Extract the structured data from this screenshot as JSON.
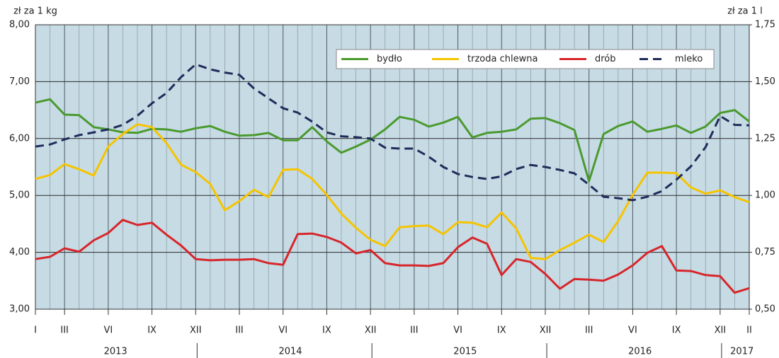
{
  "chart_data": {
    "type": "line",
    "y_label": "zł za 1 kg",
    "y2_label": "zł za 1 l",
    "categories": [
      "I",
      null,
      "III",
      null,
      null,
      "VI",
      null,
      null,
      "IX",
      null,
      null,
      "XII",
      null,
      null,
      "III",
      null,
      null,
      "VI",
      null,
      null,
      "IX",
      null,
      null,
      "XII",
      null,
      null,
      "III",
      null,
      null,
      "VI",
      null,
      null,
      "IX",
      null,
      null,
      "XII",
      null,
      null,
      "III",
      null,
      null,
      "VI",
      null,
      null,
      "IX",
      null,
      null,
      "XII",
      null,
      "II"
    ],
    "year_labels": [
      "2013",
      "2014",
      "2015",
      "2016",
      "2017"
    ],
    "ylim": [
      3,
      8
    ],
    "yticks": [
      {
        "value": 3,
        "label": "3,00"
      },
      {
        "value": 4,
        "label": "4,00"
      },
      {
        "value": 5,
        "label": "5,00"
      },
      {
        "value": 6,
        "label": "6,00"
      },
      {
        "value": 7,
        "label": "7,00"
      },
      {
        "value": 8,
        "label": "8,00"
      }
    ],
    "y2lim": [
      0.5,
      1.75
    ],
    "y2ticks": [
      {
        "value": 0.5,
        "label": "0,50"
      },
      {
        "value": 0.75,
        "label": "0,75"
      },
      {
        "value": 1,
        "label": "1,00"
      },
      {
        "value": 1.25,
        "label": "1,25"
      },
      {
        "value": 1.5,
        "label": "1,50"
      },
      {
        "value": 1.75,
        "label": "1,75"
      }
    ],
    "grid": true,
    "legend": "upper right",
    "series": [
      {
        "name": "bydło",
        "color": "#4a9a2e",
        "values": [
          6.63,
          6.69,
          6.42,
          6.41,
          6.2,
          6.16,
          6.11,
          6.1,
          6.17,
          6.16,
          6.12,
          6.18,
          6.22,
          6.12,
          6.05,
          6.06,
          6.1,
          5.97,
          5.97,
          6.2,
          5.95,
          5.75,
          5.86,
          5.98,
          6.16,
          6.38,
          6.33,
          6.21,
          6.28,
          6.38,
          6.02,
          6.1,
          6.12,
          6.16,
          6.35,
          6.36,
          6.27,
          6.15,
          5.25,
          6.08,
          6.22,
          6.3,
          6.12,
          6.17,
          6.23,
          6.1,
          6.21,
          6.45,
          6.5,
          6.3
        ]
      },
      {
        "name": "trzoda chlewna",
        "color": "#f5c400",
        "values": [
          5.29,
          5.36,
          5.55,
          5.46,
          5.35,
          5.86,
          6.08,
          6.25,
          6.2,
          5.92,
          5.54,
          5.41,
          5.2,
          4.74,
          4.9,
          5.1,
          4.97,
          5.45,
          5.46,
          5.29,
          5.01,
          4.68,
          4.43,
          4.22,
          4.11,
          4.44,
          4.46,
          4.47,
          4.32,
          4.53,
          4.52,
          4.44,
          4.7,
          4.42,
          3.9,
          3.88,
          4.04,
          4.17,
          4.31,
          4.18,
          4.55,
          5.01,
          5.4,
          5.4,
          5.39,
          5.14,
          5.03,
          5.09,
          4.97,
          4.88
        ]
      },
      {
        "name": "drób",
        "color": "#d7262a",
        "values": [
          3.88,
          3.92,
          4.07,
          4.01,
          4.21,
          4.34,
          4.57,
          4.48,
          4.52,
          4.31,
          4.12,
          3.88,
          3.86,
          3.87,
          3.87,
          3.88,
          3.81,
          3.78,
          4.32,
          4.33,
          4.27,
          4.17,
          3.98,
          4.04,
          3.81,
          3.77,
          3.77,
          3.76,
          3.81,
          4.09,
          4.26,
          4.15,
          3.6,
          3.88,
          3.83,
          3.62,
          3.36,
          3.53,
          3.52,
          3.5,
          3.61,
          3.77,
          3.99,
          4.11,
          3.68,
          3.67,
          3.6,
          3.58,
          3.29,
          3.37
        ]
      },
      {
        "name": "mleko",
        "color": "#1f2d5a",
        "dashed": true,
        "axis": "y2",
        "values": [
          1.215,
          1.224,
          1.246,
          1.265,
          1.277,
          1.29,
          1.31,
          1.35,
          1.405,
          1.45,
          1.52,
          1.576,
          1.554,
          1.54,
          1.53,
          1.47,
          1.427,
          1.383,
          1.364,
          1.324,
          1.277,
          1.26,
          1.256,
          1.25,
          1.21,
          1.206,
          1.206,
          1.17,
          1.125,
          1.094,
          1.081,
          1.072,
          1.084,
          1.116,
          1.134,
          1.125,
          1.112,
          1.097,
          1.047,
          0.994,
          0.988,
          0.979,
          0.994,
          1.019,
          1.069,
          1.128,
          1.212,
          1.349,
          1.31,
          1.308
        ]
      }
    ]
  }
}
